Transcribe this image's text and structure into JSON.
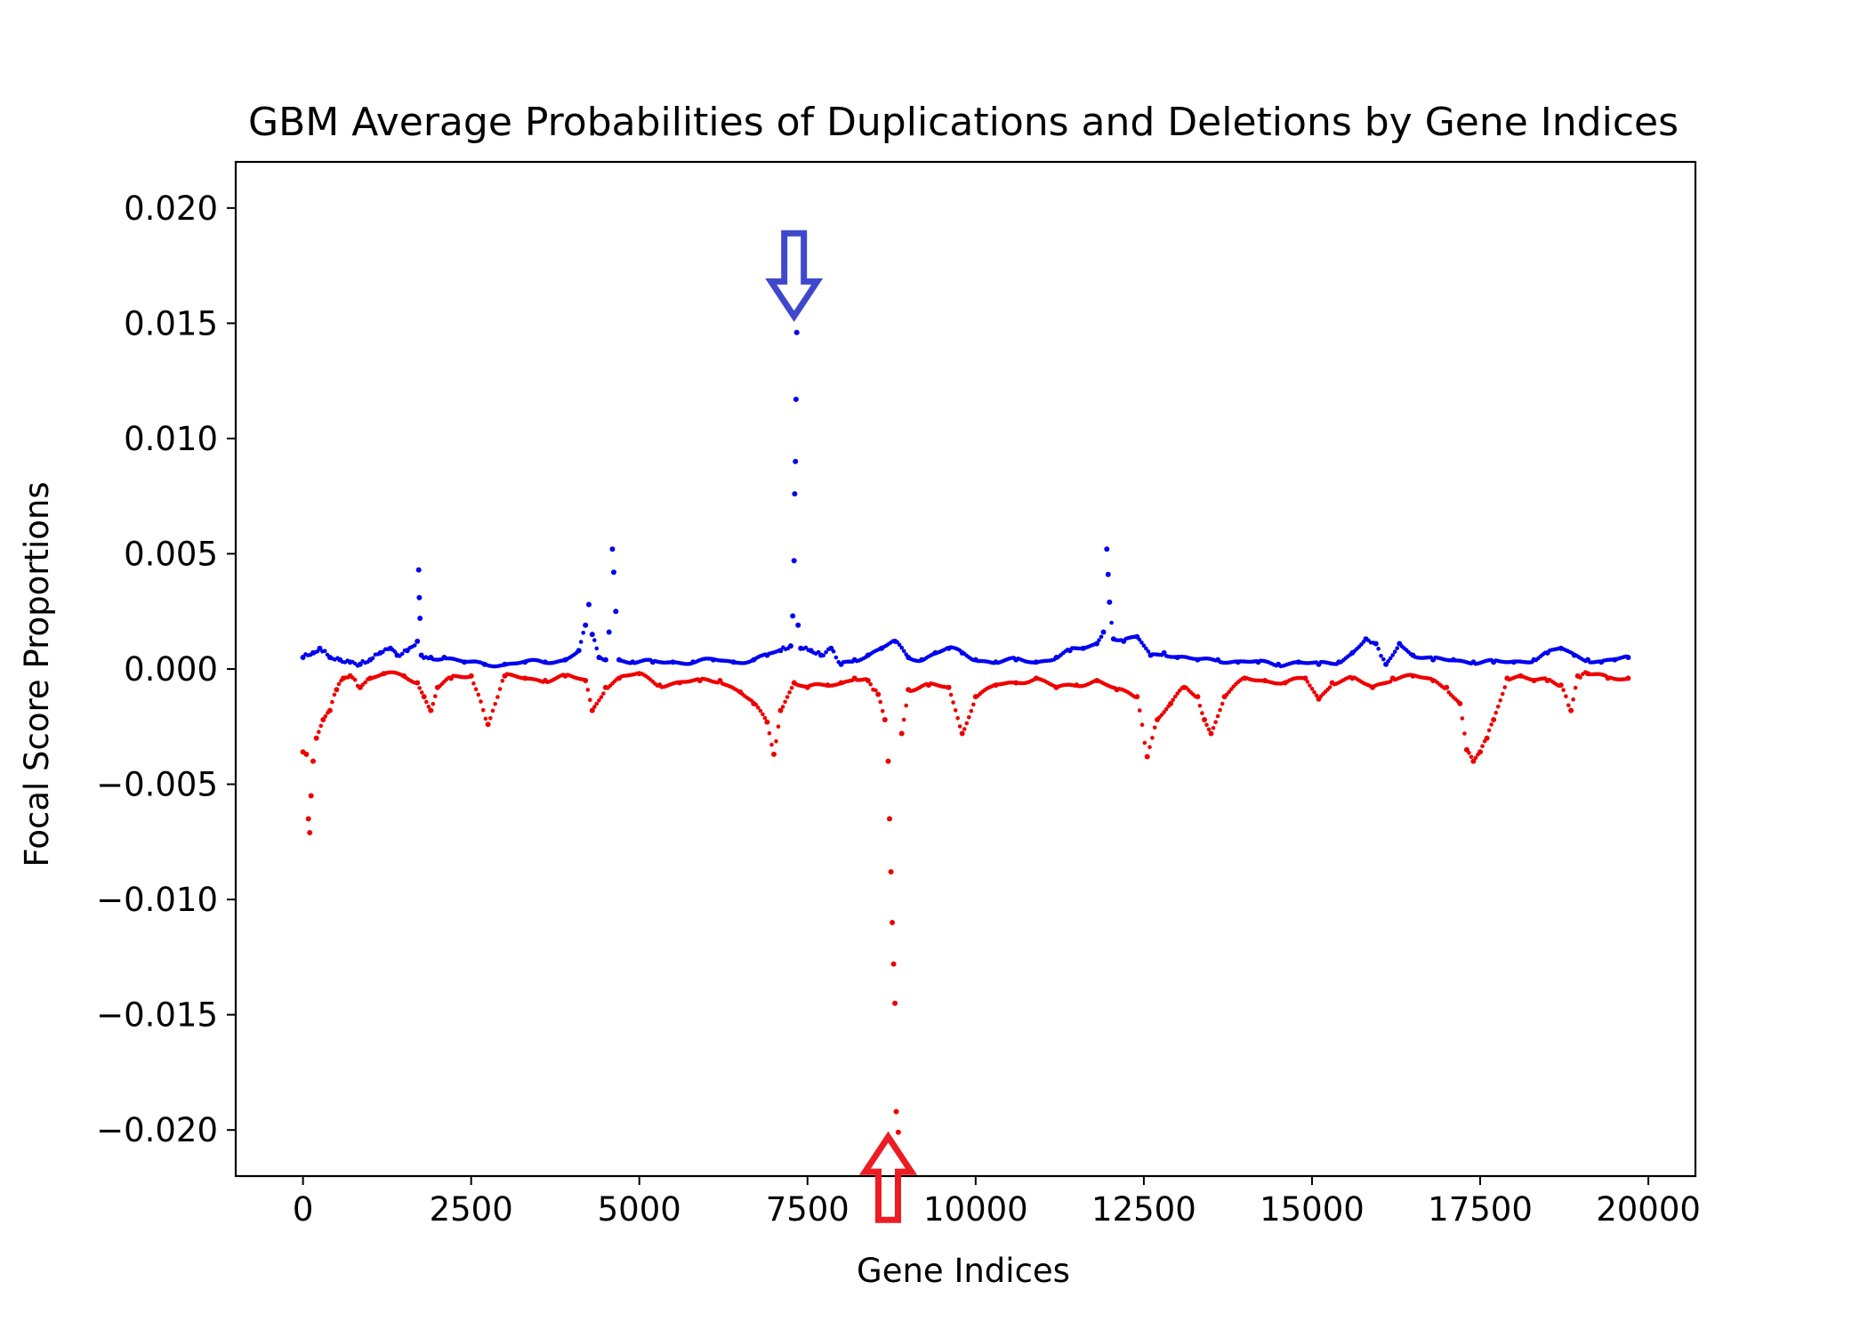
{
  "chart_data": {
    "type": "scatter",
    "title": "GBM Average Probabilities of Duplications and Deletions by Gene Indices",
    "xlabel": "Gene Indices",
    "ylabel": "Focal Score Proportions",
    "xlim": [
      -1000,
      20700
    ],
    "ylim": [
      -0.022,
      0.022
    ],
    "xticks": [
      0,
      2500,
      5000,
      7500,
      10000,
      12500,
      15000,
      17500,
      20000
    ],
    "xtick_labels": [
      "0",
      "2500",
      "5000",
      "7500",
      "10000",
      "12500",
      "15000",
      "17500",
      "20000"
    ],
    "yticks": [
      0.02,
      0.015,
      0.01,
      0.005,
      0,
      -0.005,
      -0.01,
      -0.015,
      -0.02
    ],
    "ytick_labels": [
      "0.020",
      "0.015",
      "0.010",
      "0.005",
      "0.000",
      "−0.005",
      "−0.010",
      "−0.015",
      "−0.020"
    ],
    "grid": false,
    "series": [
      {
        "color": "#0000ee",
        "x": [
          0,
          150,
          250,
          400,
          550,
          700,
          850,
          1000,
          1150,
          1300,
          1400,
          1550,
          1700,
          1720,
          1730,
          1740,
          1760,
          1900,
          2100,
          2400,
          2700,
          3000,
          3300,
          3600,
          3900,
          4100,
          4200,
          4250,
          4300,
          4400,
          4500,
          4550,
          4600,
          4620,
          4650,
          4700,
          4900,
          5200,
          5500,
          5800,
          6100,
          6400,
          6700,
          6900,
          7100,
          7250,
          7280,
          7300,
          7310,
          7320,
          7330,
          7340,
          7360,
          7400,
          7550,
          7700,
          7850,
          8000,
          8200,
          8400,
          8600,
          8800,
          9000,
          9200,
          9400,
          9600,
          9800,
          10000,
          10300,
          10600,
          10900,
          11200,
          11400,
          11600,
          11800,
          11900,
          11950,
          11970,
          11990,
          12050,
          12200,
          12400,
          12600,
          12800,
          13000,
          13300,
          13600,
          13900,
          14200,
          14500,
          14800,
          15100,
          15400,
          15600,
          15800,
          15950,
          16100,
          16300,
          16500,
          16800,
          17100,
          17400,
          17700,
          18000,
          18300,
          18500,
          18700,
          18900,
          19100,
          19300,
          19500,
          19700
        ],
        "y": [
          0.0005,
          0.0007,
          0.0009,
          0.0005,
          0.0004,
          0.0003,
          0.0002,
          0.0004,
          0.0007,
          0.0009,
          0.0006,
          0.0008,
          0.0012,
          0.0043,
          0.0031,
          0.0022,
          0.0006,
          0.0005,
          0.0005,
          0.0003,
          0.0002,
          0.0002,
          0.0003,
          0.0003,
          0.0004,
          0.0008,
          0.0019,
          0.0028,
          0.0015,
          0.0005,
          0.0004,
          0.0016,
          0.0052,
          0.0042,
          0.0025,
          0.0004,
          0.0003,
          0.0003,
          0.0003,
          0.0003,
          0.0004,
          0.0003,
          0.0004,
          0.0006,
          0.0008,
          0.001,
          0.0023,
          0.0047,
          0.0076,
          0.009,
          0.0117,
          0.0146,
          0.0019,
          0.0009,
          0.0008,
          0.0006,
          0.0009,
          0.0002,
          0.0004,
          0.0006,
          0.0009,
          0.0012,
          0.0005,
          0.0004,
          0.0007,
          0.0009,
          0.0007,
          0.0004,
          0.0003,
          0.0004,
          0.0003,
          0.0005,
          0.0008,
          0.0009,
          0.0011,
          0.0016,
          0.0052,
          0.0041,
          0.0029,
          0.0013,
          0.0012,
          0.0014,
          0.0006,
          0.0007,
          0.0005,
          0.0004,
          0.0004,
          0.0003,
          0.0003,
          0.0002,
          0.0003,
          0.0002,
          0.0003,
          0.0007,
          0.0013,
          0.0011,
          0.0002,
          0.0011,
          0.0006,
          0.0004,
          0.0004,
          0.0003,
          0.0003,
          0.0003,
          0.0004,
          0.0007,
          0.0009,
          0.0006,
          0.0004,
          0.0003,
          0.0004,
          0.0005
        ]
      },
      {
        "color": "#ee0000",
        "x": [
          0,
          50,
          80,
          100,
          120,
          150,
          200,
          300,
          400,
          500,
          600,
          700,
          850,
          1000,
          1200,
          1500,
          1700,
          1800,
          1900,
          2000,
          2200,
          2500,
          2750,
          3000,
          3300,
          3600,
          3900,
          4200,
          4300,
          4500,
          4700,
          5000,
          5300,
          5600,
          5900,
          6200,
          6500,
          6700,
          6900,
          7000,
          7100,
          7300,
          7500,
          7800,
          8000,
          8200,
          8400,
          8550,
          8650,
          8700,
          8720,
          8740,
          8760,
          8780,
          8800,
          8820,
          8850,
          8900,
          9000,
          9300,
          9600,
          9800,
          10000,
          10300,
          10600,
          10900,
          11200,
          11500,
          11800,
          12100,
          12400,
          12550,
          12700,
          12900,
          13100,
          13300,
          13400,
          13500,
          13700,
          14000,
          14300,
          14600,
          14900,
          15100,
          15300,
          15600,
          15900,
          16200,
          16500,
          16800,
          17000,
          17200,
          17300,
          17400,
          17500,
          17600,
          17700,
          17900,
          18100,
          18300,
          18500,
          18700,
          18850,
          18950,
          19100,
          19400,
          19700
        ],
        "y": [
          -0.0036,
          -0.0037,
          -0.0065,
          -0.0071,
          -0.0055,
          -0.004,
          -0.003,
          -0.0022,
          -0.0018,
          -0.0009,
          -0.0004,
          -0.0003,
          -0.0008,
          -0.0004,
          -0.0002,
          -0.0003,
          -0.0006,
          -0.0012,
          -0.0018,
          -0.0008,
          -0.0004,
          -0.0003,
          -0.0024,
          -0.0003,
          -0.0004,
          -0.0005,
          -0.0003,
          -0.0005,
          -0.0018,
          -0.0008,
          -0.0004,
          -0.0002,
          -0.0007,
          -0.0006,
          -0.0005,
          -0.0005,
          -0.001,
          -0.0015,
          -0.0023,
          -0.0037,
          -0.0018,
          -0.0006,
          -0.0008,
          -0.0007,
          -0.0006,
          -0.0004,
          -0.0005,
          -0.0011,
          -0.0022,
          -0.004,
          -0.0065,
          -0.0088,
          -0.011,
          -0.0128,
          -0.0145,
          -0.0192,
          -0.0201,
          -0.0028,
          -0.0009,
          -0.0007,
          -0.0008,
          -0.0028,
          -0.0012,
          -0.0007,
          -0.0006,
          -0.0004,
          -0.0008,
          -0.0007,
          -0.0005,
          -0.0009,
          -0.0012,
          -0.0038,
          -0.0022,
          -0.0015,
          -0.0008,
          -0.0012,
          -0.0022,
          -0.0028,
          -0.0012,
          -0.0004,
          -0.0005,
          -0.0006,
          -0.0004,
          -0.0013,
          -0.0006,
          -0.0004,
          -0.0008,
          -0.0004,
          -0.0003,
          -0.0005,
          -0.0008,
          -0.0015,
          -0.0035,
          -0.004,
          -0.0036,
          -0.003,
          -0.0022,
          -0.0004,
          -0.0003,
          -0.0005,
          -0.0005,
          -0.0007,
          -0.0018,
          -0.0003,
          -0.0002,
          -0.0004,
          -0.0004
        ]
      }
    ],
    "annotations": [
      {
        "shape": "hollow-arrow-down",
        "color": "#3f48cc",
        "x": 7300,
        "y_tip": 0.0153,
        "y_tail": 0.0189
      },
      {
        "shape": "hollow-arrow-up",
        "color": "#ed1c24",
        "x": 8700,
        "y_tip": -0.0203,
        "y_tail": -0.0239
      }
    ]
  }
}
